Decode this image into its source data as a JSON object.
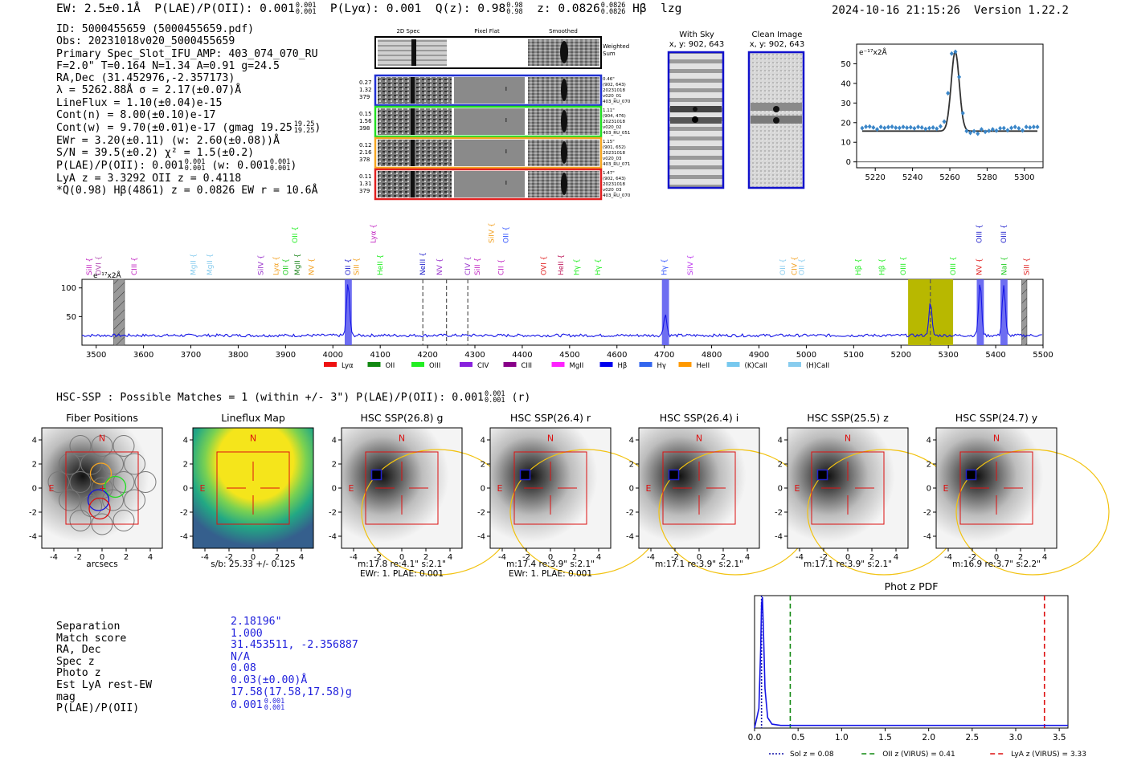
{
  "header": {
    "ew": "EW: 2.5±0.1Å",
    "plae_label": "P(LAE)/P(OII): 0.001",
    "plae_sup": "0.001",
    "plae_sub": "0.001",
    "plya": "P(Lyα): 0.001",
    "qz_label": "Q(z): 0.98",
    "qz_sup": "0.98",
    "qz_sub": "0.98",
    "z_label": "z: 0.0826",
    "z_sup": "0.0826",
    "z_sub": "0.0826",
    "line_name": "Hβ",
    "tag": "lzg",
    "timestamp": "2024-10-16 21:15:26",
    "version": "Version 1.22.2"
  },
  "info": {
    "lines": [
      "ID: 5000455659 (5000455659.pdf)",
      "Obs: 20231018v020_5000455659",
      "Primary Spec_Slot_IFU_AMP: 403_074_070_RU",
      "F=2.0\"  T=0.164  N=1.34  A=0.91  g=24.5",
      "RA,Dec (31.452976,-2.357173)",
      "λ = 5262.88Å  σ = 2.17(±0.07)Å",
      "LineFlux = 1.10(±0.04)e-15",
      "Cont(n) = 8.00(±0.10)e-17",
      "Cont(w) = 9.70(±0.01)e-17 (gmag 19.25",
      "EWr = 3.20(±0.11) (w: 2.60(±0.08))Å",
      "S/N = 39.5(±0.2)  χ² = 1.5(±0.2)",
      "P(LAE)/P(OII): 0.001",
      "LyA z = 3.3292  OII z = 0.4118",
      "*Q(0.98) Hβ(4861) z = 0.0826  EW r = 10.6Å"
    ],
    "gmag_sup": "19.25",
    "gmag_sub": "19.25",
    "plae_sup": "0.001",
    "plae_sub": "0.001",
    "plae_w": "(w: 0.001",
    "plae_w_sup": "0.001",
    "plae_w_sub": "0.001"
  },
  "spectra_panel": {
    "col_titles": [
      "2D Spec",
      "Pixel Flat",
      "Smoothed"
    ],
    "weighted_sum_label": "Weighted Sum",
    "rows": [
      {
        "left": [
          "0.27",
          "1.32",
          "379"
        ],
        "right": [
          "0.46\"",
          "(902, 643)",
          "20231018",
          "v020_01",
          "403_RU_070"
        ],
        "color": "#1f2fd0"
      },
      {
        "left": [
          "0.15",
          "1.56",
          "398"
        ],
        "right": [
          "1.11\"",
          "(904, 476)",
          "20231018",
          "v020_02",
          "403_RU_051"
        ],
        "color": "#22dd22"
      },
      {
        "left": [
          "0.12",
          "2.16",
          "378"
        ],
        "right": [
          "1.15\"",
          "(901, 652)",
          "20231018",
          "v020_03",
          "403_RU_071"
        ],
        "color": "#f5a623"
      },
      {
        "left": [
          "0.11",
          "1.31",
          "379"
        ],
        "right": [
          "1.47\"",
          "(902, 643)",
          "20231018",
          "v020_03",
          "403_RU_070"
        ],
        "color": "#e02020"
      }
    ]
  },
  "sky_panels": [
    {
      "title": "With Sky",
      "coords": "x, y: 902, 643"
    },
    {
      "title": "Clean Image",
      "coords": "x, y: 902, 643"
    }
  ],
  "fit_chart_data": {
    "type": "scatter",
    "ylabel": "e⁻¹⁷x2Å",
    "xlim": [
      5210,
      5310
    ],
    "ylim": [
      -3,
      60
    ],
    "xticks": [
      5220,
      5240,
      5260,
      5280,
      5300
    ],
    "yticks": [
      0,
      10,
      20,
      30,
      40,
      50
    ],
    "points_x": [
      5213,
      5215,
      5217,
      5219,
      5221,
      5223,
      5225,
      5227,
      5229,
      5231,
      5233,
      5235,
      5237,
      5239,
      5241,
      5243,
      5245,
      5247,
      5249,
      5251,
      5253,
      5255,
      5257,
      5259,
      5261,
      5263,
      5265,
      5267,
      5269,
      5271,
      5273,
      5275,
      5277,
      5279,
      5281,
      5283,
      5285,
      5287,
      5289,
      5291,
      5293,
      5295,
      5297,
      5299,
      5301,
      5303,
      5305,
      5307
    ],
    "points_y": [
      17.2,
      17.9,
      18.0,
      17.5,
      16.6,
      17.8,
      17.3,
      17.7,
      17.9,
      17.4,
      17.3,
      17.8,
      17.4,
      17.6,
      17.1,
      17.8,
      17.5,
      16.8,
      17.2,
      17.5,
      16.9,
      18.1,
      20.5,
      35.0,
      55.2,
      56.1,
      43.3,
      24.8,
      15.7,
      14.8,
      15.6,
      14.4,
      16.6,
      15.3,
      15.8,
      16.6,
      15.9,
      17.1,
      17.2,
      16.1,
      17.3,
      17.8,
      17.1,
      16.0,
      17.8,
      17.5,
      17.8,
      17.8
    ],
    "fit_continuum": 15.7,
    "fit_center": 5262.9,
    "fit_sigma": 2.17,
    "fit_amplitude": 40.5
  },
  "full_spectrum_chart": {
    "type": "line",
    "ylabel": "e⁻¹⁷x2Å",
    "xlim": [
      3470,
      5500
    ],
    "ylim": [
      0,
      115
    ],
    "xticks": [
      3500,
      3600,
      3700,
      3800,
      3900,
      4000,
      4100,
      4200,
      4300,
      4400,
      4500,
      4600,
      4700,
      4800,
      4900,
      5000,
      5100,
      5200,
      5300,
      5400,
      5500
    ],
    "yticks": [
      50,
      100
    ],
    "line_markers_low": [
      {
        "name": "SiII",
        "x": 3485,
        "color": "#c020c0"
      },
      {
        "name": "OVI",
        "x": 3505,
        "color": "#b050b0"
      },
      {
        "name": "CIII",
        "x": 3580,
        "color": "#c020c0"
      },
      {
        "name": "MgII",
        "x": 3705,
        "color": "#88ccee"
      },
      {
        "name": "MgII",
        "x": 3740,
        "color": "#88ccee"
      },
      {
        "name": "SiIV",
        "x": 3848,
        "color": "#9933cc"
      },
      {
        "name": "Lyα",
        "x": 3880,
        "color": "#f2a020"
      },
      {
        "name": "OII",
        "x": 3900,
        "color": "#22cc22"
      },
      {
        "name": "MgII",
        "x": 3925,
        "color": "#228822"
      },
      {
        "name": "NV",
        "x": 3955,
        "color": "#f2a020"
      },
      {
        "name": "OII",
        "x": 4032,
        "color": "#2222cc"
      },
      {
        "name": "SiII",
        "x": 4050,
        "color": "#f2a020"
      },
      {
        "name": "HeII",
        "x": 4100,
        "color": "#22ee22"
      },
      {
        "name": "NeIII",
        "x": 4190,
        "color": "#2222cc"
      },
      {
        "name": "NV",
        "x": 4225,
        "color": "#9933cc"
      },
      {
        "name": "CIV",
        "x": 4285,
        "color": "#9933cc"
      },
      {
        "name": "SiII",
        "x": 4305,
        "color": "#c020c0"
      },
      {
        "name": "CII",
        "x": 4355,
        "color": "#c020c0"
      },
      {
        "name": "OVI",
        "x": 4445,
        "color": "#e02020"
      },
      {
        "name": "HeII",
        "x": 4482,
        "color": "#c02060"
      },
      {
        "name": "Hγ",
        "x": 4515,
        "color": "#22ee22"
      },
      {
        "name": "Hγ",
        "x": 4560,
        "color": "#22ee22"
      },
      {
        "name": "Hγ",
        "x": 4700,
        "color": "#3355ff"
      },
      {
        "name": "SiIV",
        "x": 4755,
        "color": "#bb33ee"
      },
      {
        "name": "OII",
        "x": 4950,
        "color": "#88ccee"
      },
      {
        "name": "CIV",
        "x": 4975,
        "color": "#f2a020"
      },
      {
        "name": "OII",
        "x": 4990,
        "color": "#88ccee"
      },
      {
        "name": "Hβ",
        "x": 5110,
        "color": "#22ee22"
      },
      {
        "name": "Hβ",
        "x": 5160,
        "color": "#22ee22"
      },
      {
        "name": "OIII",
        "x": 5205,
        "color": "#22ee22"
      },
      {
        "name": "OIII",
        "x": 5310,
        "color": "#22ee22"
      },
      {
        "name": "NV",
        "x": 5365,
        "color": "#e02020"
      },
      {
        "name": "NaI",
        "x": 5418,
        "color": "#22cc22"
      },
      {
        "name": "SiII",
        "x": 5465,
        "color": "#e02020"
      }
    ],
    "line_markers_high": [
      {
        "name": "OII",
        "x": 3920,
        "color": "#22ee22"
      },
      {
        "name": "Lyα",
        "x": 4085,
        "color": "#c020c0"
      },
      {
        "name": "SiIV",
        "x": 4335,
        "color": "#f2a020"
      },
      {
        "name": "OII",
        "x": 4365,
        "color": "#3355ff"
      },
      {
        "name": "OIII",
        "x": 5365,
        "color": "#2222cc"
      },
      {
        "name": "OIII",
        "x": 5417,
        "color": "#2222cc"
      }
    ],
    "highlight_bands": [
      {
        "x0": 4025,
        "x1": 4040,
        "color": "#5555ee"
      },
      {
        "x0": 4695,
        "x1": 4710,
        "color": "#5555ee"
      },
      {
        "x0": 5360,
        "x1": 5375,
        "color": "#5555ee"
      },
      {
        "x0": 5410,
        "x1": 5425,
        "color": "#5555ee"
      }
    ],
    "gray_hatched_bands": [
      {
        "x0": 3537,
        "x1": 3560
      },
      {
        "x0": 5455,
        "x1": 5466
      }
    ],
    "olive_band": {
      "x0": 5215,
      "x1": 5310,
      "color": "#b8b800"
    },
    "dashed_lines": [
      4190,
      4240,
      4285,
      5262
    ],
    "legend": [
      {
        "label": "Lyα",
        "color": "#ee1111"
      },
      {
        "label": "OII",
        "color": "#118811"
      },
      {
        "label": "OIII",
        "color": "#22ee22"
      },
      {
        "label": "CIV",
        "color": "#8822dd"
      },
      {
        "label": "CIII",
        "color": "#880088"
      },
      {
        "label": "MgII",
        "color": "#ff22ff"
      },
      {
        "label": "Hβ",
        "color": "#0000ee"
      },
      {
        "label": "Hγ",
        "color": "#3366ee"
      },
      {
        "label": "HeII",
        "color": "#ff9900"
      },
      {
        "label": "(K)CaII",
        "color": "#77c8ee"
      },
      {
        "label": "(H)CaII",
        "color": "#88ccee"
      }
    ],
    "peaks": [
      {
        "x": 4032,
        "height": 92
      },
      {
        "x": 4702,
        "height": 38
      },
      {
        "x": 5262,
        "height": 57
      },
      {
        "x": 5367,
        "height": 92
      },
      {
        "x": 5417,
        "height": 88
      }
    ],
    "continuum_level": 17
  },
  "matches": {
    "text": "HSC-SSP : Possible Matches = 1 (within +/- 3\")  P(LAE)/P(OII): 0.001",
    "sup": "0.001",
    "sub": "0.001",
    "band": "(r)"
  },
  "cutouts": [
    {
      "title": "Fiber Positions",
      "caption": [
        "arcsecs"
      ],
      "kind": "fiber"
    },
    {
      "title": "Lineflux Map",
      "caption": [
        "s/b: 25.33 +/- 0.125"
      ],
      "kind": "lineflux"
    },
    {
      "title": "HSC SSP(26.8) g",
      "caption": [
        "m:17.8  re:4.1\"  s:2.1\"",
        "EWr: 1. PLAE: 0.001"
      ],
      "kind": "hsc"
    },
    {
      "title": "HSC SSP(26.4) r",
      "caption": [
        "m:17.4  re:3.9\"  s:2.1\"",
        "EWr: 1. PLAE: 0.001"
      ],
      "kind": "hsc"
    },
    {
      "title": "HSC SSP(26.4) i",
      "caption": [
        "m:17.1  re:3.9\"  s:2.1\""
      ],
      "kind": "hsc"
    },
    {
      "title": "HSC SSP(25.5) z",
      "caption": [
        "m:17.1  re:3.9\"  s:2.1\""
      ],
      "kind": "hsc"
    },
    {
      "title": "HSC SSP(24.7) y",
      "caption": [
        "m:16.9  re:3.7\"  s:2.2\""
      ],
      "kind": "hsc"
    }
  ],
  "cutout_axes": {
    "ticks": [
      -4,
      -2,
      0,
      2,
      4
    ],
    "compass_n": "N",
    "compass_e": "E"
  },
  "match_table": {
    "labels": [
      "Separation",
      "Match score",
      "RA, Dec",
      "Spec z",
      "Photo z",
      "Est LyA rest-EW",
      "mag",
      "P(LAE)/P(OII)"
    ],
    "values": [
      "2.18196\"",
      "1.000",
      "31.453511, -2.356887",
      "N/A",
      "0.08",
      "0.03(±0.00)Å",
      "17.58(17.58,17.58)g",
      "0.001"
    ],
    "plae_sup": "0.001",
    "plae_sub": "0.001"
  },
  "photz_chart_data": {
    "type": "line",
    "title": "Phot z PDF",
    "xlim": [
      0,
      3.6
    ],
    "xticks": [
      0.0,
      0.5,
      1.0,
      1.5,
      2.0,
      2.5,
      3.0,
      3.5
    ],
    "curve_x": [
      0.0,
      0.05,
      0.07,
      0.08,
      0.09,
      0.1,
      0.12,
      0.15,
      0.2,
      0.3,
      0.5,
      1.0,
      2.0,
      3.0,
      3.6
    ],
    "curve_y": [
      0.0,
      0.15,
      0.6,
      0.95,
      1.0,
      0.8,
      0.3,
      0.08,
      0.03,
      0.02,
      0.02,
      0.02,
      0.02,
      0.02,
      0.02
    ],
    "vlines": [
      {
        "x": 0.08,
        "color": "#1111aa",
        "style": "dotted",
        "label": "Sol z = 0.08"
      },
      {
        "x": 0.41,
        "color": "#118811",
        "style": "dashed",
        "label": "OII z (VIRUS) = 0.41"
      },
      {
        "x": 3.33,
        "color": "#dd1111",
        "style": "dashed",
        "label": "LyA z (VIRUS) = 3.33"
      }
    ]
  }
}
